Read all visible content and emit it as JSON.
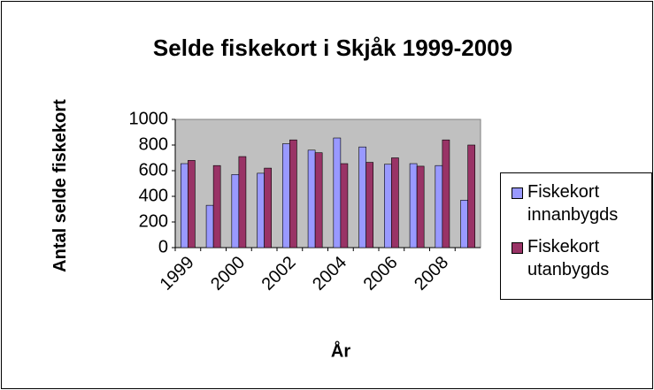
{
  "chart_data": {
    "type": "bar",
    "title": "Selde fiskekort i Skjåk 1999-2009",
    "y_label": "Antal selde fiskekort",
    "x_label": "År",
    "categories": [
      "1999",
      null,
      "2000",
      null,
      "2002",
      null,
      "2004",
      null,
      "2006",
      null,
      "2008",
      null
    ],
    "series": [
      {
        "name": "Fiskekort innanbygds",
        "color": "#9999ff",
        "values": [
          655,
          330,
          570,
          580,
          810,
          760,
          855,
          785,
          650,
          655,
          640,
          370
        ]
      },
      {
        "name": "Fiskekort utanbygds",
        "color": "#993366",
        "values": [
          680,
          640,
          710,
          620,
          840,
          740,
          655,
          665,
          700,
          635,
          840,
          800
        ]
      }
    ],
    "ylim": [
      0,
      1000
    ],
    "yticks": [
      0,
      200,
      400,
      600,
      800,
      1000
    ],
    "grid": false,
    "plot_background": "#c0c0c0",
    "legend": "right"
  }
}
